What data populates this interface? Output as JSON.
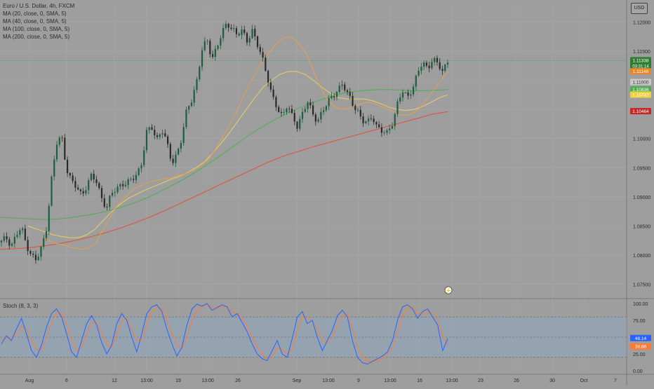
{
  "legend": {
    "title": "Euro / U.S. Dollar, 4h, FXCM",
    "ma20": "MA (20, close, 0, SMA, 5)",
    "ma40": "MA (40, close, 0, SMA, 5)",
    "ma100": "MA (100, close, 0, SMA, 5)",
    "ma200": "MA (200, close, 0, SMA, 5)"
  },
  "currency_button": "USD",
  "stoch_title": "Stoch (8, 3, 3)",
  "colors": {
    "background": "#9e9e9e",
    "up": "#1e5e3e",
    "down": "#2a2a2a",
    "ma20": "#e8a050",
    "ma40": "#e8d060",
    "ma100": "#4caf50",
    "ma200": "#e05030",
    "stoch_k": "#2962ff",
    "stoch_d": "#ff7a33",
    "stoch_band": "#8fa7bd"
  },
  "chart_data": [
    {
      "type": "candlestick",
      "title": "Euro / U.S. Dollar, 4h, FXCM",
      "x": [
        "Aug",
        "6",
        "12",
        "13:00",
        "19",
        "13:00",
        "26",
        "Sep",
        "13:00",
        "9",
        "13:00",
        "16",
        "13:00",
        "23",
        "26",
        "30",
        "Oct",
        "7"
      ],
      "ylim": [
        1.0728,
        1.1228
      ],
      "yticks": [
        "1.12000",
        "1.11500",
        "1.11000",
        "1.10500",
        "1.10000",
        "1.09500",
        "1.09000",
        "1.08500",
        "1.08000",
        "1.07500"
      ],
      "last_price_label": "1.11338",
      "countdown_label": "03:31:14",
      "price_tags": [
        {
          "label": "1.11338",
          "value": 1.11338,
          "color": "#2e7d32"
        },
        {
          "label": "1.11148",
          "value": 1.11148,
          "color": "#e8862a"
        },
        {
          "label": "1.11000",
          "value": 1.11,
          "color": "#c8c8c8"
        },
        {
          "label": "1.10836",
          "value": 1.10836,
          "color": "#4caf50"
        },
        {
          "label": "1.10747",
          "value": 1.10747,
          "color": "#f0d040"
        },
        {
          "label": "1.10464",
          "value": 1.10464,
          "color": "#c62828"
        }
      ],
      "close_path": [
        1.0822,
        1.083,
        1.0818,
        1.0835,
        1.0845,
        1.082,
        1.08,
        1.079,
        1.0812,
        1.085,
        1.093,
        1.099,
        1.1005,
        1.095,
        1.0925,
        1.0915,
        1.0905,
        1.092,
        1.0935,
        1.0925,
        1.09,
        1.088,
        1.0905,
        1.0915,
        1.0925,
        1.092,
        1.093,
        1.094,
        1.096,
        1.101,
        1.102,
        1.1,
        1.1015,
        1.099,
        1.096,
        1.0975,
        1.1,
        1.105,
        1.107,
        1.11,
        1.115,
        1.117,
        1.114,
        1.1155,
        1.118,
        1.12,
        1.119,
        1.1175,
        1.1185,
        1.117,
        1.1185,
        1.116,
        1.114,
        1.111,
        1.107,
        1.105,
        1.104,
        1.106,
        1.1035,
        1.102,
        1.1045,
        1.1065,
        1.104,
        1.103,
        1.105,
        1.106,
        1.107,
        1.1085,
        1.1095,
        1.1075,
        1.106,
        1.105,
        1.103,
        1.1025,
        1.104,
        1.102,
        1.101,
        1.1008,
        1.103,
        1.106,
        1.108,
        1.107,
        1.109,
        1.111,
        1.113,
        1.112,
        1.114,
        1.1125,
        1.1115,
        1.1134
      ],
      "ma20": [
        1.083,
        1.0825,
        1.082,
        1.0818,
        1.0815,
        1.0812,
        1.081,
        1.0812,
        1.082,
        1.084,
        1.086,
        1.088,
        1.0895,
        1.0905,
        1.0915,
        1.092,
        1.0925,
        1.0928,
        1.093,
        1.0932,
        1.0935,
        1.0938,
        1.0942,
        1.0948,
        1.0955,
        1.0965,
        1.098,
        1.1,
        1.102,
        1.104,
        1.1065,
        1.109,
        1.111,
        1.113,
        1.1145,
        1.116,
        1.117,
        1.1175,
        1.117,
        1.1158,
        1.114,
        1.111,
        1.1085,
        1.1065,
        1.1055,
        1.105,
        1.1052,
        1.1056,
        1.106,
        1.1062,
        1.106,
        1.1055,
        1.105,
        1.1045,
        1.104,
        1.104,
        1.1045,
        1.1055,
        1.107,
        1.1085,
        1.11,
        1.1115
      ],
      "ma40": [
        1.085,
        1.0845,
        1.084,
        1.0835,
        1.0832,
        1.083,
        1.083,
        1.0835,
        1.0845,
        1.086,
        1.0875,
        1.0888,
        1.0898,
        1.0905,
        1.0912,
        1.0918,
        1.0924,
        1.093,
        1.0935,
        1.0942,
        1.095,
        1.096,
        1.0975,
        1.0992,
        1.101,
        1.103,
        1.105,
        1.107,
        1.1088,
        1.11,
        1.111,
        1.1115,
        1.1115,
        1.111,
        1.11,
        1.1088,
        1.1078,
        1.107,
        1.1068,
        1.1068,
        1.1068,
        1.1065,
        1.106,
        1.1054,
        1.105,
        1.1048,
        1.105,
        1.1055,
        1.1062,
        1.107,
        1.1075
      ],
      "ma100": [
        1.0865,
        1.0864,
        1.0863,
        1.0862,
        1.0861,
        1.0862,
        1.0864,
        1.0867,
        1.087,
        1.0874,
        1.0879,
        1.0885,
        1.0892,
        1.09,
        1.091,
        1.092,
        1.093,
        1.0942,
        1.0955,
        1.0968,
        1.0982,
        1.0996,
        1.101,
        1.1022,
        1.1033,
        1.1043,
        1.1052,
        1.106,
        1.1067,
        1.1073,
        1.1078,
        1.1081,
        1.1083,
        1.1084,
        1.1084,
        1.1083,
        1.1082,
        1.1082,
        1.1083,
        1.1084
      ],
      "ma200": [
        1.081,
        1.0811,
        1.0813,
        1.0816,
        1.082,
        1.0825,
        1.0831,
        1.0838,
        1.0846,
        1.0855,
        1.0865,
        1.0876,
        1.0888,
        1.09,
        1.0912,
        1.0924,
        1.0936,
        1.0948,
        1.096,
        1.097,
        1.0978,
        1.0986,
        1.0993,
        1.1,
        1.1007,
        1.1014,
        1.1021,
        1.1028,
        1.1035,
        1.1042,
        1.1046
      ]
    },
    {
      "type": "line",
      "title": "Stoch (8, 3, 3)",
      "ylim": [
        0,
        100
      ],
      "yticks": [
        "100.00",
        "75.00",
        "50.00",
        "25.00",
        "0.00"
      ],
      "band": [
        20,
        80
      ],
      "k_label": "48.14",
      "d_label": "38.86",
      "k": [
        40,
        52,
        45,
        62,
        78,
        55,
        30,
        20,
        38,
        65,
        85,
        92,
        80,
        55,
        28,
        20,
        45,
        70,
        82,
        68,
        42,
        25,
        38,
        70,
        85,
        75,
        50,
        28,
        55,
        85,
        95,
        98,
        88,
        62,
        40,
        22,
        35,
        68,
        92,
        99,
        96,
        100,
        90,
        94,
        98,
        95,
        80,
        85,
        72,
        58,
        40,
        25,
        18,
        15,
        30,
        45,
        25,
        20,
        48,
        80,
        88,
        70,
        75,
        50,
        30,
        45,
        60,
        82,
        90,
        80,
        45,
        20,
        12,
        10,
        14,
        18,
        22,
        28,
        45,
        75,
        95,
        98,
        92,
        78,
        88,
        92,
        80,
        68,
        30,
        48
      ],
      "d": [
        45,
        48,
        50,
        55,
        65,
        62,
        45,
        32,
        30,
        50,
        72,
        86,
        85,
        68,
        45,
        30,
        35,
        55,
        72,
        72,
        55,
        38,
        35,
        55,
        75,
        78,
        62,
        45,
        45,
        70,
        88,
        95,
        92,
        75,
        55,
        38,
        32,
        50,
        75,
        92,
        96,
        98,
        95,
        93,
        95,
        96,
        88,
        85,
        78,
        65,
        50,
        35,
        25,
        18,
        22,
        35,
        32,
        25,
        32,
        60,
        80,
        78,
        74,
        62,
        45,
        42,
        50,
        68,
        82,
        84,
        62,
        35,
        20,
        14,
        13,
        15,
        19,
        24,
        35,
        58,
        82,
        94,
        95,
        85,
        84,
        88,
        85,
        75,
        52,
        38
      ]
    }
  ]
}
